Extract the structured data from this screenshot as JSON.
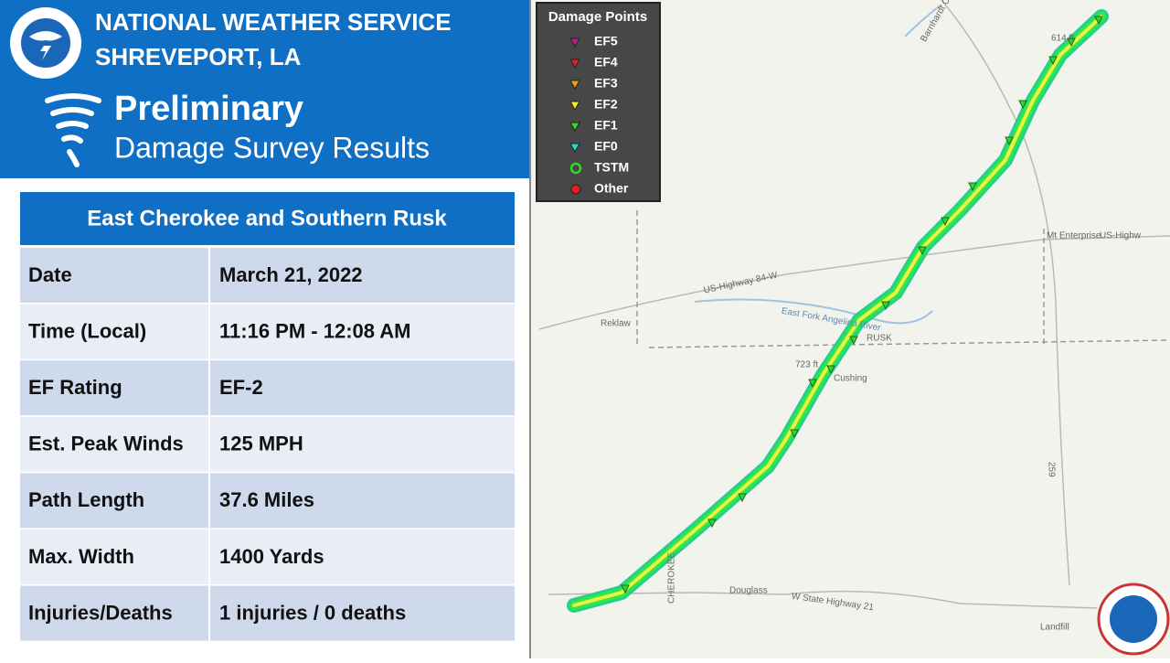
{
  "header": {
    "title": "NATIONAL WEATHER SERVICE",
    "subtitle": "SHREVEPORT, LA",
    "heading": "Preliminary",
    "subheading": "Damage Survey Results"
  },
  "table": {
    "title": "East Cherokee and Southern Rusk",
    "rows": [
      [
        "Date",
        "March 21, 2022"
      ],
      [
        "Time (Local)",
        "11:16 PM - 12:08 AM"
      ],
      [
        "EF Rating",
        "EF-2"
      ],
      [
        "Est. Peak Winds",
        "125 MPH"
      ],
      [
        "Path Length",
        "37.6 Miles"
      ],
      [
        "Max. Width",
        "1400 Yards"
      ],
      [
        "Injuries/Deaths",
        "1 injuries / 0 deaths"
      ]
    ]
  },
  "legend": {
    "title": "Damage Points",
    "items": [
      {
        "label": "EF5",
        "color": "#b0208f"
      },
      {
        "label": "EF4",
        "color": "#e02020"
      },
      {
        "label": "EF3",
        "color": "#f09a20"
      },
      {
        "label": "EF2",
        "color": "#f0ec20"
      },
      {
        "label": "EF1",
        "color": "#30d830"
      },
      {
        "label": "EF0",
        "color": "#20e0d0"
      },
      {
        "label": "TSTM",
        "color": "#30d830"
      },
      {
        "label": "Other",
        "color": "#e02020"
      }
    ]
  },
  "map": {
    "labels": [
      "Barnhardt Creek",
      "614 ft",
      "US-Highway 84-W",
      "East Fork Angelina River",
      "RUSK",
      "Reklaw",
      "723 ft",
      "Cushing",
      "Mt Enterprise",
      "US-Highw",
      "259",
      "CHEROKEE",
      "Douglass",
      "W State Highway 21",
      "Landfill"
    ]
  }
}
